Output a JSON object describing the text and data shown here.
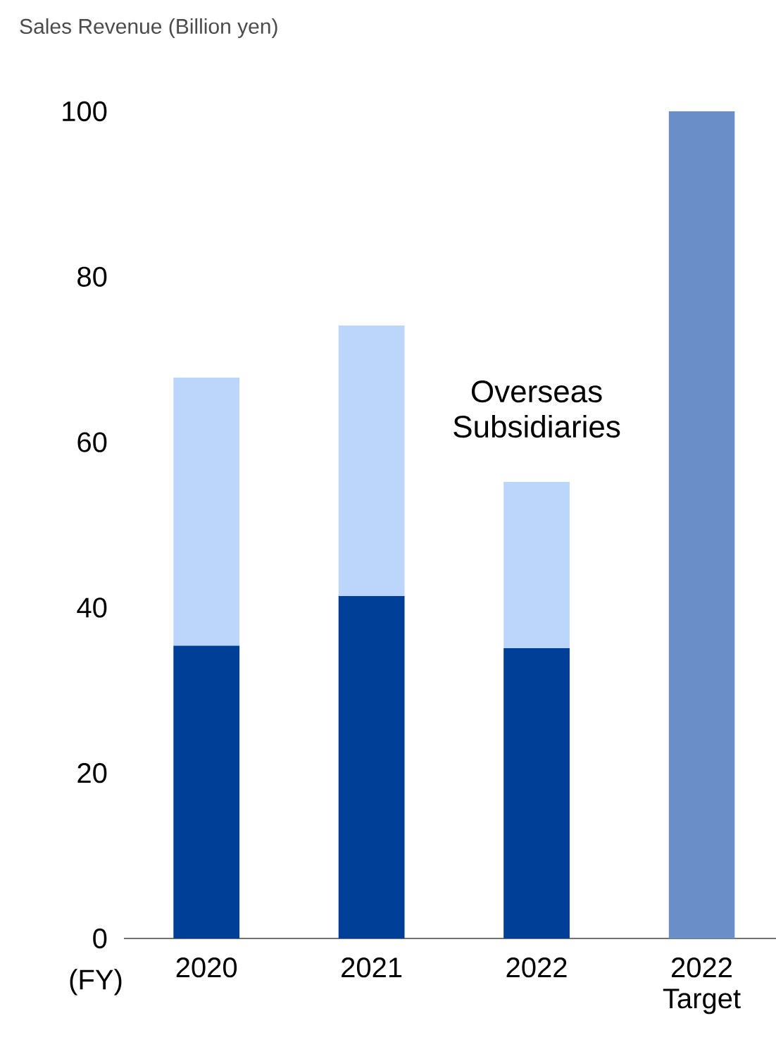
{
  "chart_data": {
    "type": "bar",
    "stacked": true,
    "title": "Sales Revenue (Billion yen)",
    "xlabel": "(FY)",
    "categories": [
      "2020",
      "2021",
      "2022",
      "2022 Target"
    ],
    "series": [
      {
        "color": "#003f98",
        "values": [
          35.4,
          41.4,
          35.1,
          null
        ]
      },
      {
        "name": "Overseas Subsidiaries",
        "color": "#bcd6fb",
        "values": [
          32.4,
          32.7,
          20.1,
          null
        ]
      },
      {
        "color": "#6a8ec8",
        "values": [
          null,
          null,
          null,
          100
        ]
      }
    ],
    "ylim": [
      0,
      100
    ],
    "yticks": [
      0,
      20,
      40,
      60,
      80,
      100
    ],
    "grid": false,
    "legend": false
  }
}
